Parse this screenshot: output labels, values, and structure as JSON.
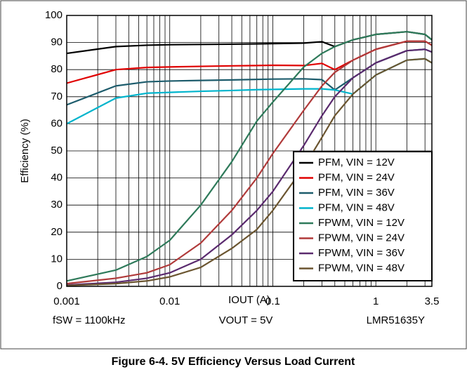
{
  "chart_data": {
    "type": "line",
    "caption": "Figure 6-4. 5V Efficiency Versus Load Current",
    "x_label": "IOUT (A)",
    "y_label": "Efficiency (%)",
    "annotations": [
      "fSW = 1100kHz",
      "VOUT = 5V",
      "LMR51635Y"
    ],
    "x": [
      0.001,
      0.003,
      0.006,
      0.01,
      0.02,
      0.04,
      0.07,
      0.1,
      0.2,
      0.3,
      0.4,
      0.6,
      1,
      2,
      3,
      3.5
    ],
    "series": [
      {
        "name": "PFM, VIN = 12V",
        "color": "#000000",
        "values": [
          86,
          88.5,
          89,
          89.2,
          89.3,
          89.4,
          89.5,
          89.6,
          89.8,
          90.3,
          88.5,
          91,
          93,
          94,
          93,
          91
        ]
      },
      {
        "name": "PFM, VIN = 24V",
        "color": "#e00000",
        "values": [
          75,
          80,
          80.8,
          81,
          81.2,
          81.4,
          81.5,
          81.6,
          81.5,
          82.3,
          80,
          83.5,
          87.5,
          90.5,
          90.5,
          89
        ]
      },
      {
        "name": "PFM, VIN = 36V",
        "color": "#1d5c6c",
        "values": [
          67,
          74,
          75.5,
          75.8,
          76,
          76.2,
          76.4,
          76.5,
          76.6,
          76.3,
          72.5,
          77,
          82.5,
          87,
          87.5,
          86.5
        ]
      },
      {
        "name": "PFM, VIN = 48V",
        "color": "#00b4cc",
        "values": [
          60,
          69.5,
          71.3,
          71.6,
          72,
          72.3,
          72.6,
          72.7,
          72.9,
          72.9,
          72.5,
          71,
          78,
          83.5,
          84,
          82.5
        ]
      },
      {
        "name": "FPWM, VIN = 12V",
        "color": "#2e7a5a",
        "values": [
          2,
          6,
          11,
          17,
          30,
          46,
          61,
          68,
          81,
          86,
          88.5,
          91,
          93,
          94,
          93,
          91
        ]
      },
      {
        "name": "FPWM, VIN = 24V",
        "color": "#b03a3a",
        "values": [
          1,
          3,
          5,
          8,
          16,
          28,
          40,
          49,
          65,
          74,
          79,
          83.5,
          87.5,
          90.5,
          90.5,
          89
        ]
      },
      {
        "name": "FPWM, VIN = 36V",
        "color": "#5a2a6e",
        "values": [
          0.5,
          1.5,
          3,
          5,
          10,
          19,
          28,
          35,
          52,
          63,
          70,
          77,
          82.5,
          87,
          87.5,
          86.5
        ]
      },
      {
        "name": "FPWM, VIN = 48V",
        "color": "#6b5530",
        "values": [
          0.3,
          1,
          2,
          3.5,
          7,
          14,
          21,
          28,
          44,
          55,
          63,
          71,
          78,
          83.5,
          84,
          82.5
        ]
      }
    ],
    "xlim": [
      0.001,
      3.5
    ],
    "ylim": [
      0,
      100
    ],
    "xticks": [
      0.001,
      0.01,
      0.1,
      1,
      3.5
    ],
    "yticks": [
      0,
      10,
      20,
      30,
      40,
      50,
      60,
      70,
      80,
      90,
      100
    ],
    "x_log": true,
    "grid": true,
    "legend": "lower right"
  }
}
